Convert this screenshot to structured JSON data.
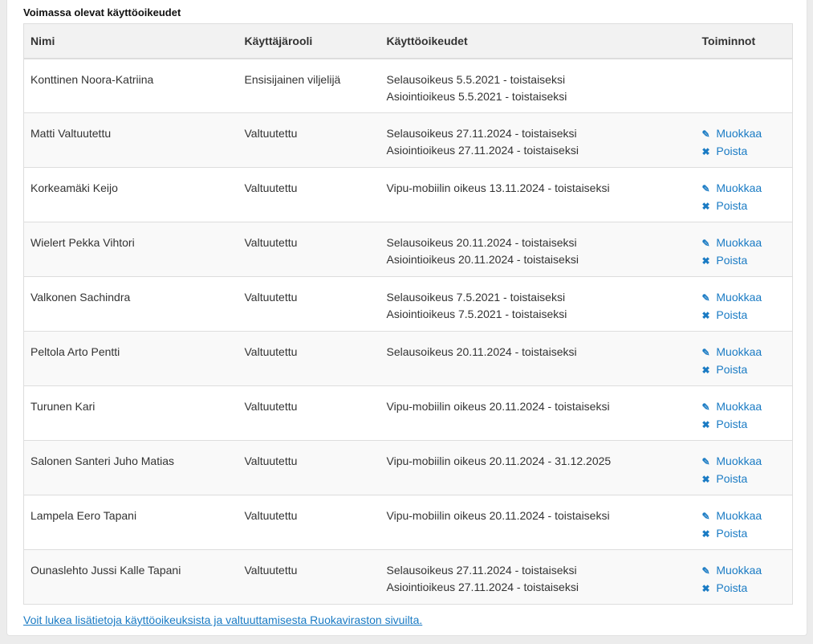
{
  "title": "Voimassa olevat käyttöoikeudet",
  "columns": [
    "Nimi",
    "Käyttäjärooli",
    "Käyttöoikeudet",
    "Toiminnot"
  ],
  "actions": {
    "edit": "Muokkaa",
    "delete": "Poista",
    "edit_icon": "edit-icon",
    "delete_icon": "times-icon"
  },
  "rows": [
    {
      "name": "Konttinen Noora-Katriina",
      "role": "Ensisijainen viljelijä",
      "rights": [
        "Selausoikeus 5.5.2021 - toistaiseksi",
        "Asiointioikeus 5.5.2021 - toistaiseksi"
      ],
      "actions": false
    },
    {
      "name": "Matti Valtuutettu",
      "role": "Valtuutettu",
      "rights": [
        "Selausoikeus 27.11.2024 - toistaiseksi",
        "Asiointioikeus 27.11.2024 - toistaiseksi"
      ],
      "actions": true
    },
    {
      "name": "Korkeamäki Keijo",
      "role": "Valtuutettu",
      "rights": [
        "Vipu-mobiilin oikeus 13.11.2024 - toistaiseksi"
      ],
      "actions": true
    },
    {
      "name": "Wielert Pekka Vihtori",
      "role": "Valtuutettu",
      "rights": [
        "Selausoikeus 20.11.2024 - toistaiseksi",
        "Asiointioikeus 20.11.2024 - toistaiseksi"
      ],
      "actions": true
    },
    {
      "name": "Valkonen Sachindra",
      "role": "Valtuutettu",
      "rights": [
        "Selausoikeus 7.5.2021 - toistaiseksi",
        "Asiointioikeus 7.5.2021 - toistaiseksi"
      ],
      "actions": true
    },
    {
      "name": "Peltola Arto Pentti",
      "role": "Valtuutettu",
      "rights": [
        "Selausoikeus 20.11.2024 - toistaiseksi"
      ],
      "actions": true
    },
    {
      "name": "Turunen Kari",
      "role": "Valtuutettu",
      "rights": [
        "Vipu-mobiilin oikeus 20.11.2024 - toistaiseksi"
      ],
      "actions": true
    },
    {
      "name": "Salonen Santeri Juho Matias",
      "role": "Valtuutettu",
      "rights": [
        "Vipu-mobiilin oikeus 20.11.2024 - 31.12.2025"
      ],
      "actions": true
    },
    {
      "name": "Lampela Eero Tapani",
      "role": "Valtuutettu",
      "rights": [
        "Vipu-mobiilin oikeus 20.11.2024 - toistaiseksi"
      ],
      "actions": true
    },
    {
      "name": "Ounaslehto Jussi Kalle Tapani",
      "role": "Valtuutettu",
      "rights": [
        "Selausoikeus 27.11.2024 - toistaiseksi",
        "Asiointioikeus 27.11.2024 - toistaiseksi"
      ],
      "actions": true
    }
  ],
  "footer_link": "Voit lukea lisätietoja käyttöoikeuksista ja valtuuttamisesta Ruokaviraston sivuilta.",
  "colors": {
    "link": "#1a7bc4"
  }
}
